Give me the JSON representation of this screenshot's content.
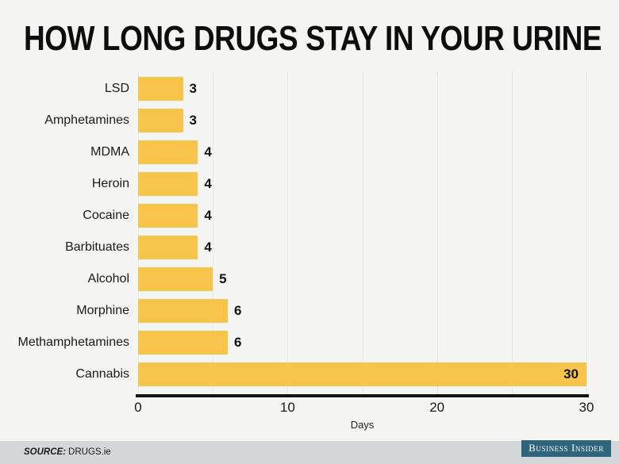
{
  "chart_data": {
    "type": "bar",
    "orientation": "horizontal",
    "title": "HOW LONG DRUGS STAY IN YOUR URINE",
    "categories": [
      "LSD",
      "Amphetamines",
      "MDMA",
      "Heroin",
      "Cocaine",
      "Barbituates",
      "Alcohol",
      "Morphine",
      "Methamphetamines",
      "Cannabis"
    ],
    "values": [
      3,
      3,
      4,
      4,
      4,
      4,
      5,
      6,
      6,
      30
    ],
    "xlabel": "Days",
    "xlim": [
      0,
      30
    ],
    "xticks": [
      0,
      10,
      20,
      30
    ],
    "gridline_interval": 5,
    "grid": true,
    "legend": "none",
    "value_labels_shown": true
  },
  "colors": {
    "background": "#f4f4f2",
    "bar": "#f8c54c",
    "grid": "#e2e2e0",
    "axis": "#131313",
    "title_text": "#0d0d0d",
    "footer_bg": "#d4d7d8",
    "badge_bg": "#2e657d",
    "badge_text": "#ffffff"
  },
  "footer": {
    "source_label": "SOURCE:",
    "source_value": "DRUGS.ie",
    "brand": "Business Insider"
  }
}
